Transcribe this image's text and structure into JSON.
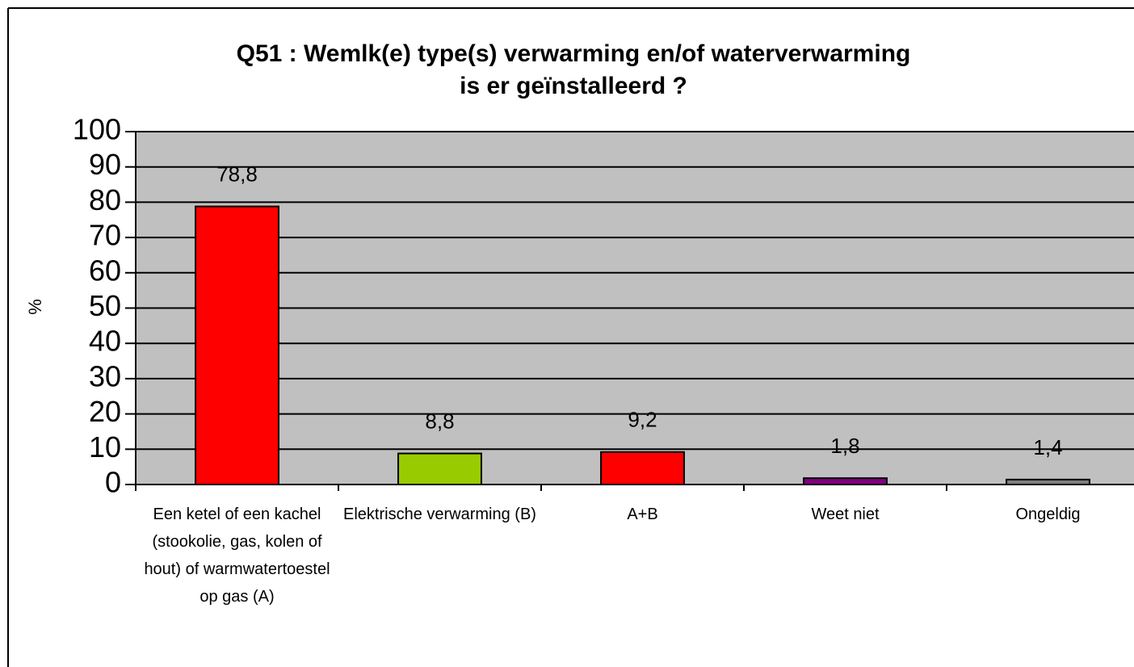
{
  "chart_data": {
    "type": "bar",
    "title": [
      "Q51 : Wemlk(e) type(s) verwarming en/of waterverwarming",
      "is er geïnstalleerd ?"
    ],
    "y_label": "%",
    "categories": [
      "Een ketel of een kachel (stookolie, gas, kolen of hout) of warmwatertoestel op gas (A)",
      "Elektrische verwarming (B)",
      "A+B",
      "Weet niet",
      "Ongeldig"
    ],
    "values": [
      78.8,
      8.8,
      9.2,
      1.8,
      1.4
    ],
    "value_labels": [
      "78,8",
      "8,8",
      "9,2",
      "1,8",
      "1,4"
    ],
    "colors": [
      "#ff0000",
      "#99cc00",
      "#ff0000",
      "#800080",
      "#808080"
    ],
    "ylim": [
      0,
      100
    ],
    "yticks": [
      0,
      10,
      20,
      30,
      40,
      50,
      60,
      70,
      80,
      90,
      100
    ],
    "grid": true
  }
}
